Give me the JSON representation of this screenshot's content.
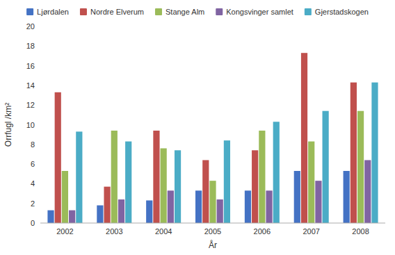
{
  "chart_data": {
    "type": "bar",
    "categories": [
      "2002",
      "2003",
      "2004",
      "2005",
      "2006",
      "2007",
      "2008"
    ],
    "series": [
      {
        "name": "Ljørdalen",
        "color": "#4472C4",
        "values": [
          1.3,
          1.8,
          2.3,
          3.3,
          3.3,
          5.3,
          5.3
        ]
      },
      {
        "name": "Nordre Elverum",
        "color": "#C0504D",
        "values": [
          13.3,
          3.7,
          9.4,
          6.4,
          7.4,
          17.3,
          14.3
        ]
      },
      {
        "name": "Stange Alm",
        "color": "#9BBB59",
        "values": [
          5.3,
          9.4,
          7.6,
          4.3,
          9.4,
          8.3,
          11.4
        ]
      },
      {
        "name": "Kongsvinger samlet",
        "color": "#8064A2",
        "values": [
          1.3,
          2.4,
          3.3,
          2.4,
          3.3,
          4.3,
          6.4
        ]
      },
      {
        "name": "Gjerstadskogen",
        "color": "#4BACC6",
        "values": [
          9.3,
          8.3,
          7.4,
          8.4,
          10.3,
          11.4,
          14.3
        ]
      }
    ],
    "xlabel": "År",
    "ylabel": "Orrfugl /km²",
    "ylim": [
      0,
      20
    ],
    "yticks": [
      0,
      2,
      4,
      6,
      8,
      10,
      12,
      14,
      16,
      18,
      20
    ],
    "grid": false,
    "legend": "top"
  }
}
